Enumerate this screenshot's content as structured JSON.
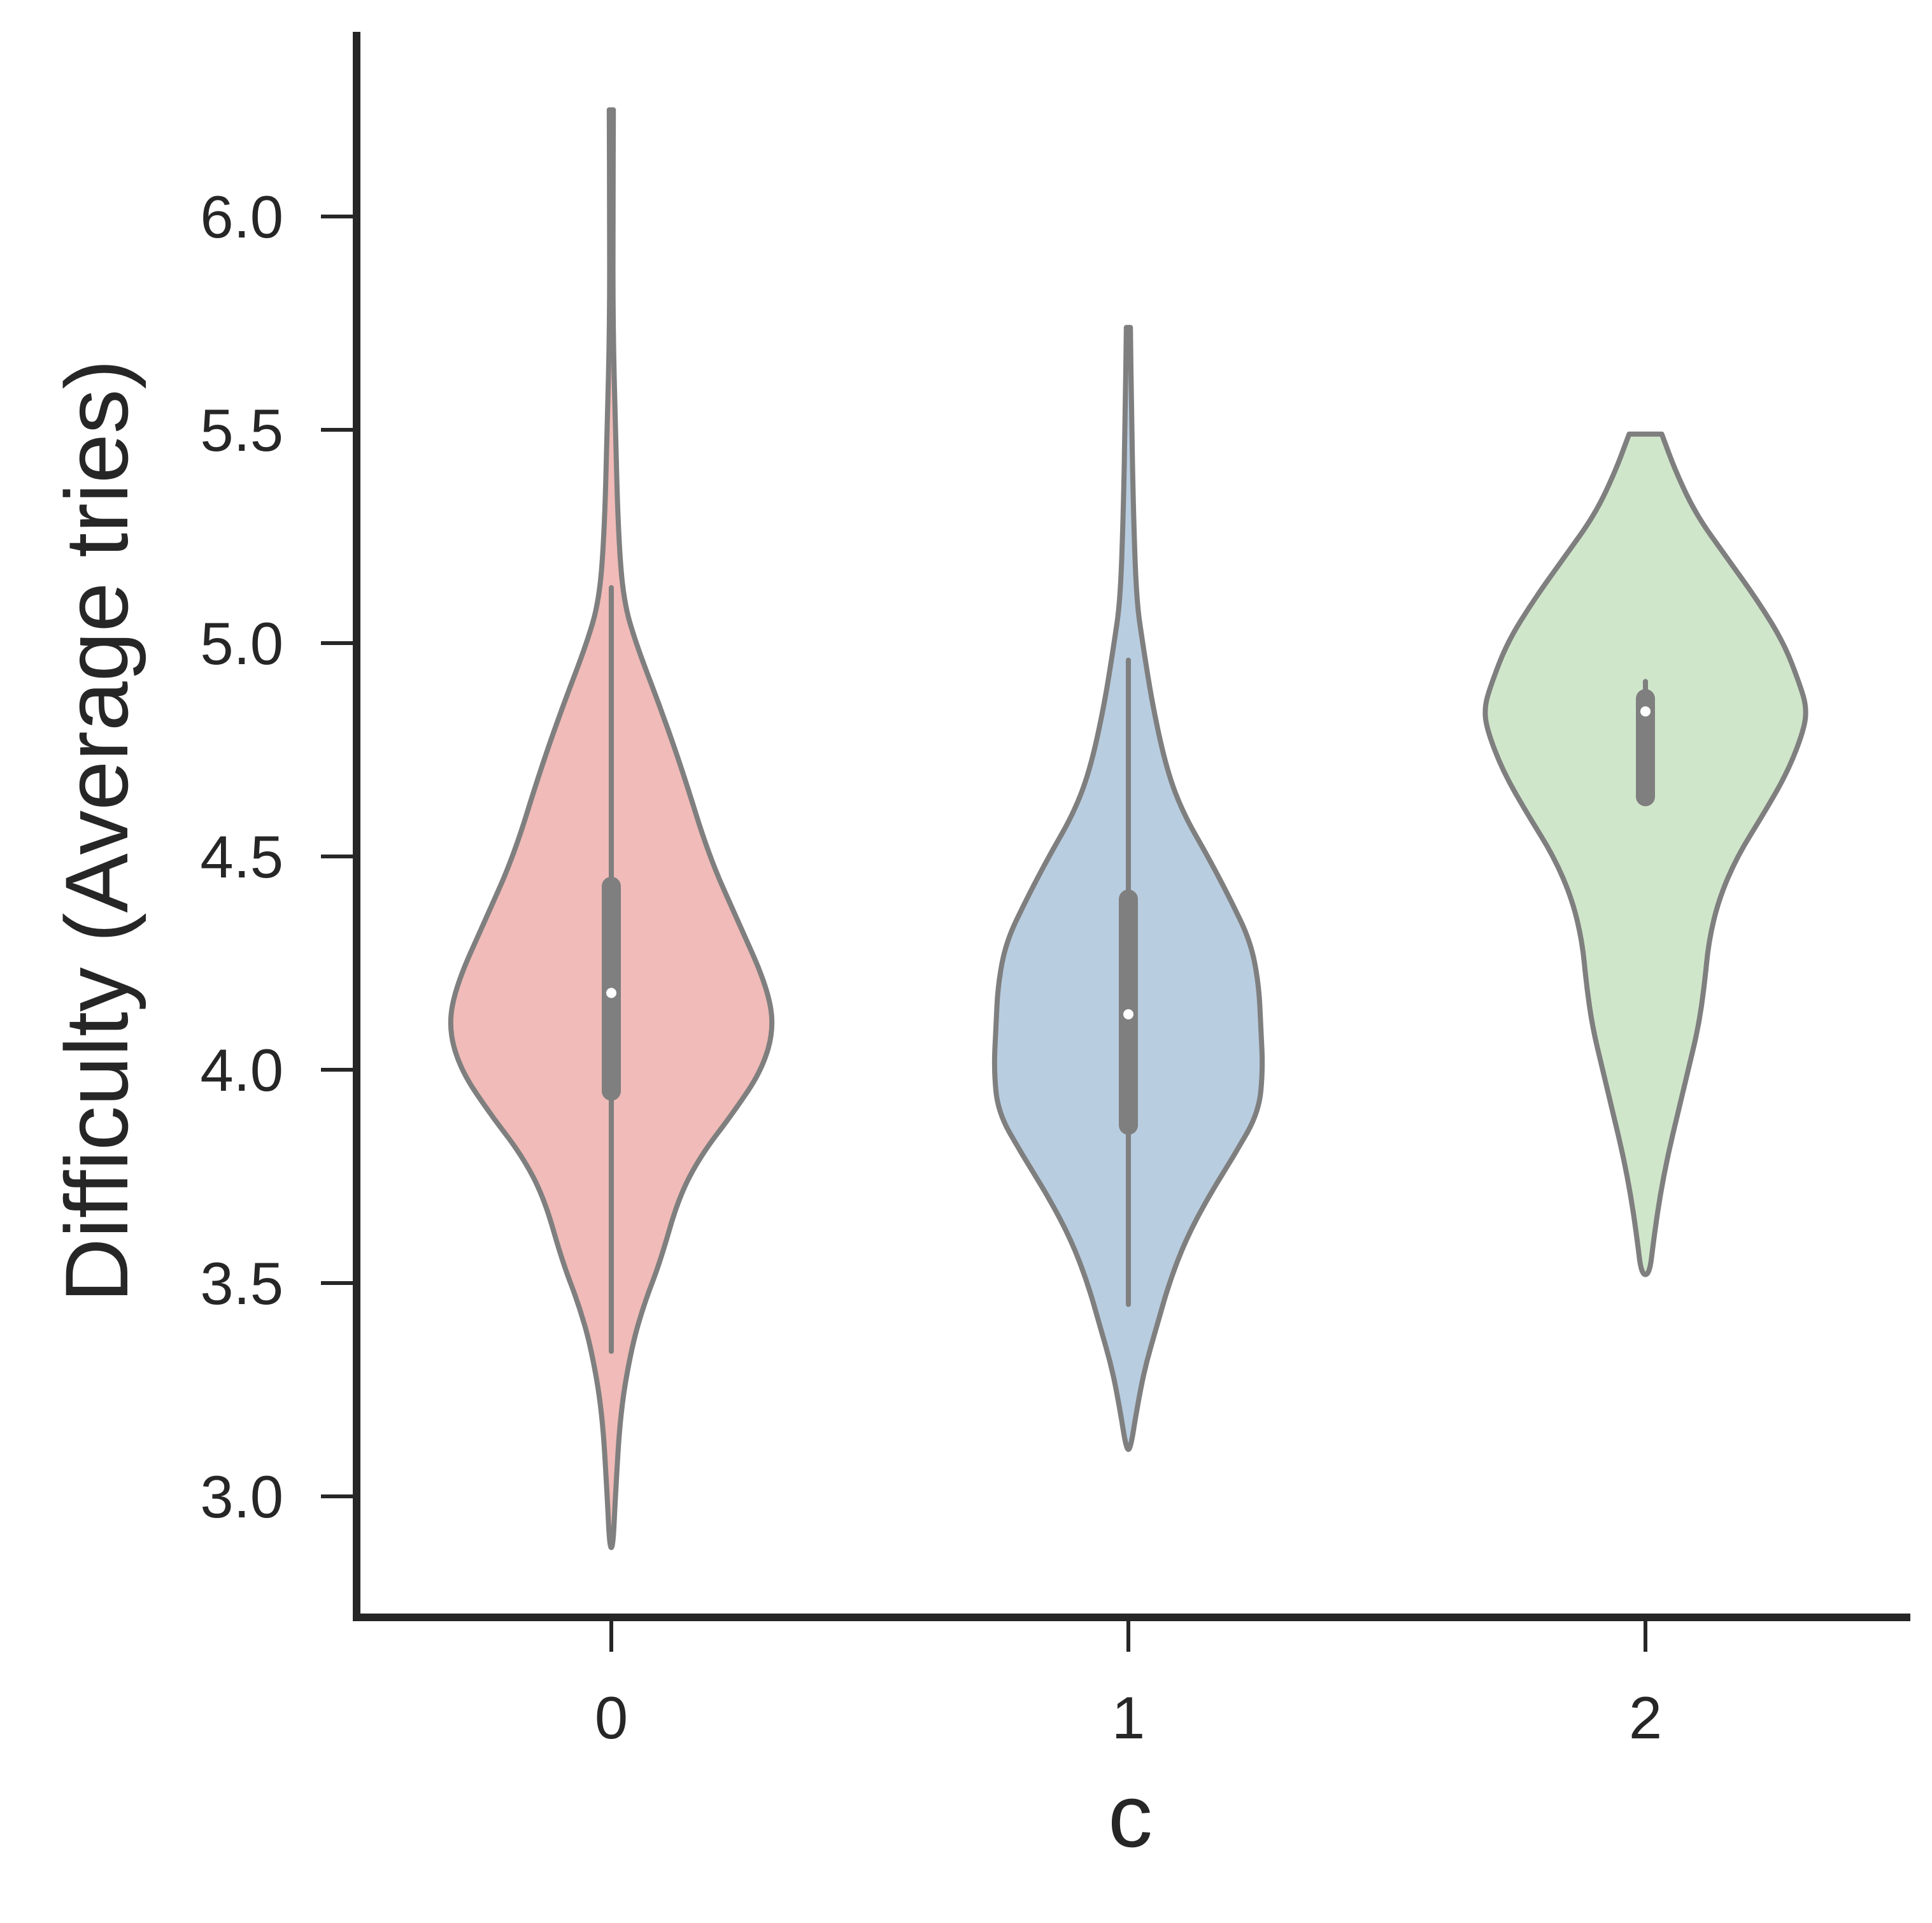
{
  "chart_data": {
    "type": "violin",
    "title": "",
    "xlabel": "c",
    "ylabel": "Difficulty (Average tries)",
    "categories": [
      "0",
      "1",
      "2"
    ],
    "y_ticks": [
      "3.0",
      "3.5",
      "4.0",
      "4.5",
      "5.0",
      "5.5",
      "6.0"
    ],
    "y_tick_values": [
      3.0,
      3.5,
      4.0,
      4.5,
      5.0,
      5.5,
      6.0
    ],
    "ylim": [
      2.72,
      6.42
    ],
    "grid": false,
    "colors": {
      "0": "#f0bbb8",
      "1": "#b9cde0",
      "2": "#d0e6cb",
      "outline": "#7f7f7f",
      "axis": "#262626"
    },
    "violins": [
      {
        "category": "0",
        "median": 4.18,
        "q1": 3.95,
        "q3": 4.43,
        "whisker_low": 3.34,
        "whisker_high": 5.13,
        "profile": [
          [
            6.25,
            0.01
          ],
          [
            6.0,
            0.008
          ],
          [
            5.75,
            0.008
          ],
          [
            5.5,
            0.02
          ],
          [
            5.25,
            0.035
          ],
          [
            5.1,
            0.06
          ],
          [
            5.0,
            0.12
          ],
          [
            4.85,
            0.24
          ],
          [
            4.7,
            0.35
          ],
          [
            4.5,
            0.48
          ],
          [
            4.35,
            0.62
          ],
          [
            4.2,
            0.76
          ],
          [
            4.1,
            0.8
          ],
          [
            4.0,
            0.74
          ],
          [
            3.9,
            0.6
          ],
          [
            3.8,
            0.44
          ],
          [
            3.7,
            0.33
          ],
          [
            3.55,
            0.24
          ],
          [
            3.45,
            0.16
          ],
          [
            3.35,
            0.1
          ],
          [
            3.2,
            0.045
          ],
          [
            3.0,
            0.02
          ],
          [
            2.88,
            0.008
          ]
        ]
      },
      {
        "category": "1",
        "median": 4.13,
        "q1": 3.87,
        "q3": 4.4,
        "whisker_low": 3.45,
        "whisker_high": 4.96,
        "profile": [
          [
            5.74,
            0.01
          ],
          [
            5.55,
            0.015
          ],
          [
            5.3,
            0.025
          ],
          [
            5.1,
            0.04
          ],
          [
            5.0,
            0.07
          ],
          [
            4.85,
            0.12
          ],
          [
            4.7,
            0.19
          ],
          [
            4.6,
            0.27
          ],
          [
            4.5,
            0.39
          ],
          [
            4.4,
            0.5
          ],
          [
            4.3,
            0.6
          ],
          [
            4.2,
            0.64
          ],
          [
            4.1,
            0.65
          ],
          [
            4.0,
            0.66
          ],
          [
            3.9,
            0.64
          ],
          [
            3.8,
            0.52
          ],
          [
            3.7,
            0.39
          ],
          [
            3.6,
            0.28
          ],
          [
            3.5,
            0.2
          ],
          [
            3.4,
            0.14
          ],
          [
            3.3,
            0.08
          ],
          [
            3.2,
            0.04
          ],
          [
            3.11,
            0.01
          ]
        ]
      },
      {
        "category": "2",
        "median": 4.84,
        "q1": 4.64,
        "q3": 4.87,
        "whisker_low": 4.64,
        "whisker_high": 4.91,
        "profile": [
          [
            5.49,
            0.08
          ],
          [
            5.4,
            0.15
          ],
          [
            5.3,
            0.25
          ],
          [
            5.2,
            0.4
          ],
          [
            5.1,
            0.55
          ],
          [
            5.0,
            0.68
          ],
          [
            4.9,
            0.76
          ],
          [
            4.85,
            0.79
          ],
          [
            4.8,
            0.78
          ],
          [
            4.7,
            0.7
          ],
          [
            4.6,
            0.58
          ],
          [
            4.5,
            0.45
          ],
          [
            4.4,
            0.36
          ],
          [
            4.3,
            0.31
          ],
          [
            4.2,
            0.29
          ],
          [
            4.1,
            0.26
          ],
          [
            4.0,
            0.21
          ],
          [
            3.9,
            0.16
          ],
          [
            3.8,
            0.11
          ],
          [
            3.7,
            0.07
          ],
          [
            3.6,
            0.04
          ],
          [
            3.52,
            0.02
          ]
        ]
      }
    ]
  }
}
